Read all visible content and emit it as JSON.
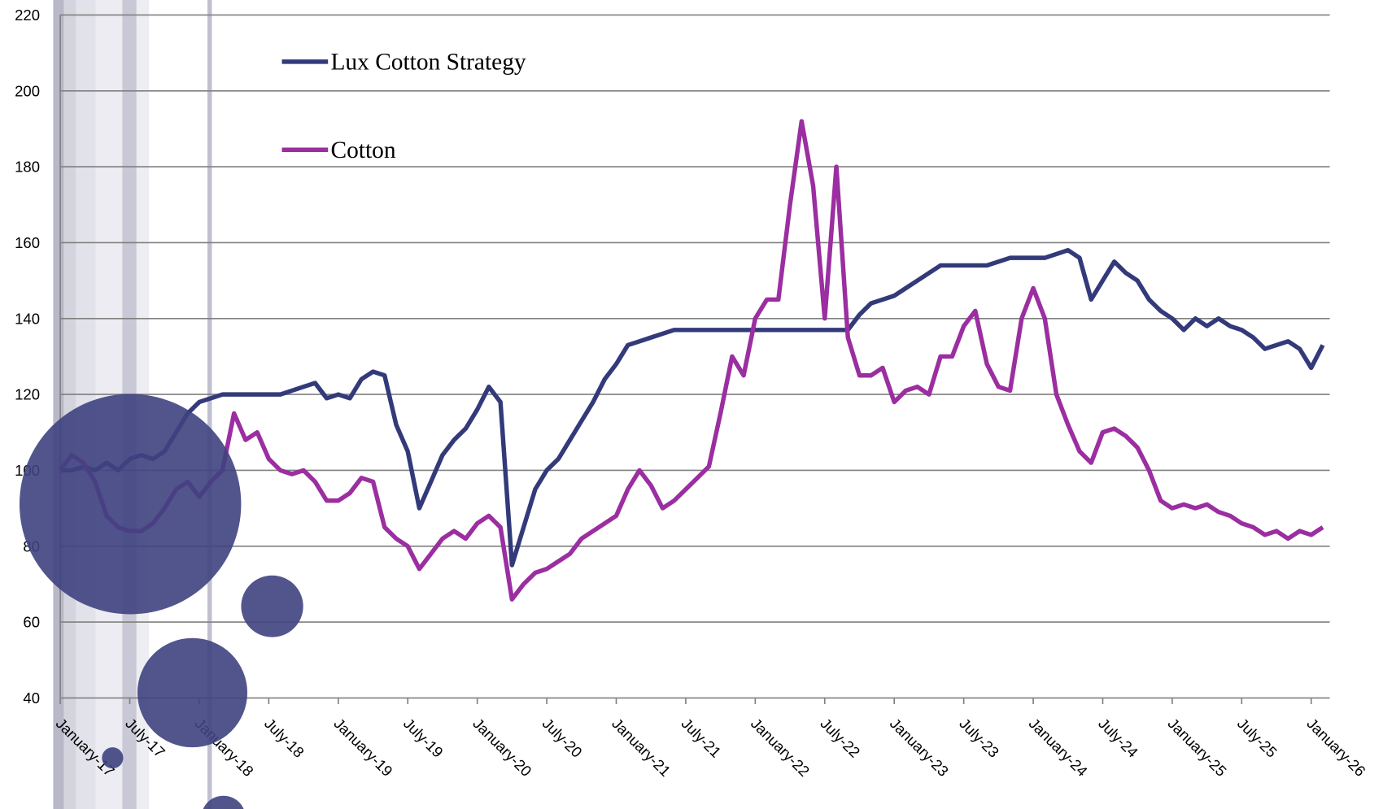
{
  "chart_data": {
    "type": "line",
    "categories": [
      "January-17",
      null,
      null,
      null,
      null,
      null,
      "July-17",
      null,
      null,
      null,
      null,
      null,
      "January-18",
      null,
      null,
      null,
      null,
      null,
      "July-18",
      null,
      null,
      null,
      null,
      null,
      "January-19",
      null,
      null,
      null,
      null,
      null,
      "July-19",
      null,
      null,
      null,
      null,
      null,
      "January-20",
      null,
      null,
      null,
      null,
      null,
      "July-20",
      null,
      null,
      null,
      null,
      null,
      "January-21",
      null,
      null,
      null,
      null,
      null,
      "July-21",
      null,
      null,
      null,
      null,
      null,
      "January-22",
      null,
      null,
      null,
      null,
      null,
      "July-22",
      null,
      null,
      null,
      null,
      null,
      "January-23",
      null,
      null,
      null,
      null,
      null,
      "July-23",
      null,
      null,
      null,
      null,
      null,
      "January-24",
      null,
      null,
      null,
      null,
      null,
      "July-24",
      null,
      null,
      null,
      null,
      null,
      "January-25",
      null,
      null,
      null,
      null,
      null,
      "July-25",
      null,
      null,
      null,
      null,
      null,
      "January-26",
      null
    ],
    "series": [
      {
        "name": "Lux Cotton Strategy",
        "color": "#333a7a",
        "values": [
          100,
          100,
          101,
          100,
          102,
          100,
          103,
          104,
          103,
          105,
          110,
          115,
          118,
          119,
          120,
          120,
          120,
          120,
          120,
          120,
          121,
          122,
          123,
          119,
          120,
          119,
          124,
          126,
          125,
          112,
          105,
          90,
          97,
          104,
          108,
          111,
          116,
          122,
          118,
          75,
          85,
          95,
          100,
          103,
          108,
          113,
          118,
          124,
          128,
          133,
          134,
          135,
          136,
          137,
          137,
          137,
          137,
          137,
          137,
          137,
          137,
          137,
          137,
          137,
          137,
          137,
          137,
          137,
          137,
          141,
          144,
          145,
          146,
          148,
          150,
          152,
          154,
          154,
          154,
          154,
          154,
          155,
          156,
          156,
          156,
          156,
          157,
          158,
          156,
          145,
          150,
          155,
          152,
          150,
          145,
          142,
          140,
          137,
          140,
          138,
          140,
          138,
          137,
          135,
          132,
          133,
          134,
          132,
          127,
          133
        ]
      },
      {
        "name": "Cotton",
        "color": "#9b2ea0",
        "values": [
          100,
          104,
          102,
          97,
          88,
          85,
          84,
          84,
          86,
          90,
          95,
          97,
          93,
          97,
          100,
          115,
          108,
          110,
          103,
          100,
          99,
          100,
          97,
          92,
          92,
          94,
          98,
          97,
          85,
          82,
          80,
          74,
          78,
          82,
          84,
          82,
          86,
          88,
          85,
          66,
          70,
          73,
          74,
          76,
          78,
          82,
          84,
          86,
          88,
          95,
          100,
          96,
          90,
          92,
          95,
          98,
          101,
          115,
          130,
          125,
          140,
          145,
          145,
          170,
          192,
          175,
          140,
          180,
          135,
          125,
          125,
          127,
          118,
          121,
          122,
          120,
          130,
          130,
          138,
          142,
          128,
          122,
          121,
          140,
          148,
          140,
          120,
          112,
          105,
          102,
          110,
          111,
          109,
          106,
          100,
          92,
          90,
          91,
          90,
          91,
          89,
          88,
          86,
          85,
          83,
          84,
          82,
          84,
          83,
          85
        ]
      }
    ],
    "ylim": [
      40,
      220
    ],
    "yticks": [
      40,
      60,
      80,
      100,
      120,
      140,
      160,
      180,
      200,
      220
    ],
    "grid": true
  }
}
